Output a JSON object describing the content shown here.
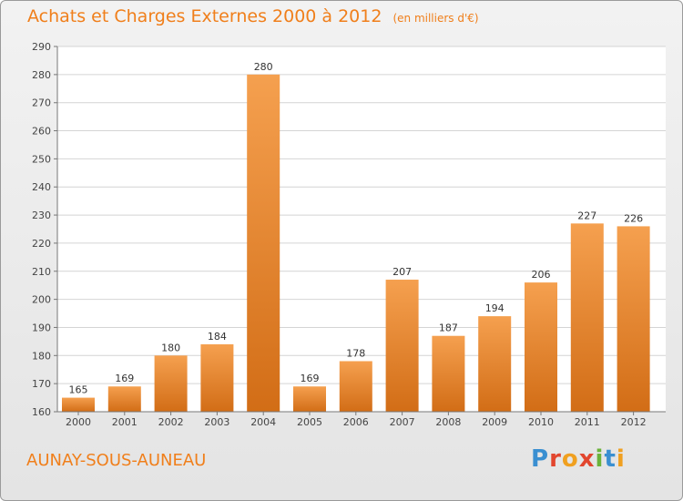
{
  "header": {
    "title": "Achats et Charges Externes 2000 à 2012",
    "unit_note": "(en milliers d'€)"
  },
  "footer": {
    "location": "AUNAY-SOUS-AUNEAU",
    "logo_text": "Proxiti"
  },
  "colors": {
    "bar_top": "#f5a04f",
    "bar_bottom": "#d26d16",
    "title": "#f07f1b",
    "grid": "#d4d4d4"
  },
  "chart_data": {
    "type": "bar",
    "title": "Achats et Charges Externes 2000 à 2012",
    "categories": [
      "2000",
      "2001",
      "2002",
      "2003",
      "2004",
      "2005",
      "2006",
      "2007",
      "2008",
      "2009",
      "2010",
      "2011",
      "2012"
    ],
    "values": [
      165,
      169,
      180,
      184,
      280,
      169,
      178,
      207,
      187,
      194,
      206,
      227,
      226
    ],
    "ylim": [
      160,
      290
    ],
    "yticks": [
      160,
      170,
      180,
      190,
      200,
      210,
      220,
      230,
      240,
      250,
      260,
      270,
      280,
      290
    ],
    "grid": true,
    "data_labels": true,
    "xlabel": "",
    "ylabel": ""
  }
}
